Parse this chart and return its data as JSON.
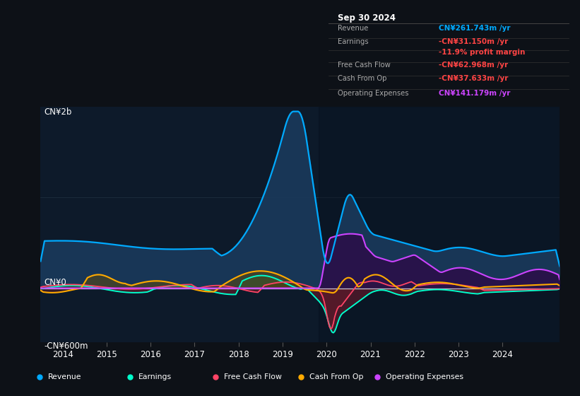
{
  "background_color": "#0d1117",
  "chart_bg": "#0d1a2a",
  "title": "Sep 30 2024",
  "ylabel_top": "CN¥2b",
  "ylabel_bottom": "-CN¥600m",
  "ylabel_zero": "CN¥0",
  "revenue_color": "#00aaff",
  "earnings_color": "#00ffcc",
  "free_cash_color": "#ff4466",
  "cash_from_op_color": "#ffaa00",
  "op_expenses_color": "#cc44ff",
  "info_box_date": "Sep 30 2024",
  "info_rows": [
    {
      "label": "Revenue",
      "value": "CN¥261.743m /yr",
      "value_color": "#00aaff"
    },
    {
      "label": "Earnings",
      "value": "-CN¥31.150m /yr",
      "value_color": "#ff4444"
    },
    {
      "label": "",
      "value": "-11.9% profit margin",
      "value_color": "#ff4444"
    },
    {
      "label": "Free Cash Flow",
      "value": "-CN¥62.968m /yr",
      "value_color": "#ff4444"
    },
    {
      "label": "Cash From Op",
      "value": "-CN¥37.633m /yr",
      "value_color": "#ff4444"
    },
    {
      "label": "Operating Expenses",
      "value": "CN¥141.179m /yr",
      "value_color": "#cc44ff"
    }
  ],
  "legend_items": [
    {
      "label": "Revenue",
      "color": "#00aaff"
    },
    {
      "label": "Earnings",
      "color": "#00ffcc"
    },
    {
      "label": "Free Cash Flow",
      "color": "#ff4466"
    },
    {
      "label": "Cash From Op",
      "color": "#ffaa00"
    },
    {
      "label": "Operating Expenses",
      "color": "#cc44ff"
    }
  ],
  "ylim": [
    -600,
    2000
  ],
  "xlim": [
    2013.5,
    2025.3
  ]
}
